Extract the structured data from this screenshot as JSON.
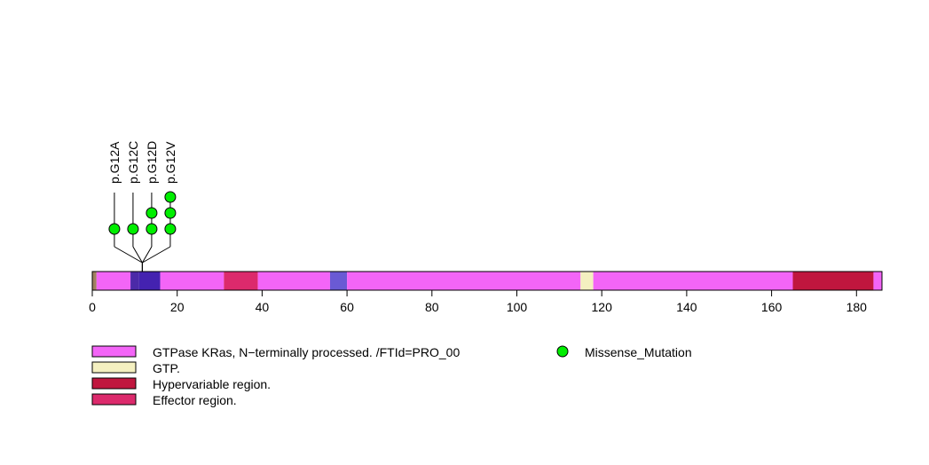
{
  "chart_data": {
    "type": "lollipop",
    "xlim": [
      0,
      186
    ],
    "x_ticks": [
      0,
      20,
      40,
      60,
      80,
      100,
      120,
      140,
      160,
      180
    ],
    "protein_length": 186,
    "domains": [
      {
        "start": 0,
        "end": 1,
        "color": "#a08060"
      },
      {
        "start": 1,
        "end": 9,
        "color": "#f365f7"
      },
      {
        "start": 9,
        "end": 11,
        "color": "#4b2aa8"
      },
      {
        "start": 11,
        "end": 16,
        "color": "#4422b0"
      },
      {
        "start": 16,
        "end": 31,
        "color": "#f365f7"
      },
      {
        "start": 31,
        "end": 39,
        "color": "#dc2a6c"
      },
      {
        "start": 39,
        "end": 56,
        "color": "#f365f7"
      },
      {
        "start": 56,
        "end": 60,
        "color": "#6a5ad4"
      },
      {
        "start": 60,
        "end": 115,
        "color": "#f365f7"
      },
      {
        "start": 115,
        "end": 118,
        "color": "#f4f0c0"
      },
      {
        "start": 118,
        "end": 165,
        "color": "#f365f7"
      },
      {
        "start": 165,
        "end": 184,
        "color": "#c0163e"
      },
      {
        "start": 184,
        "end": 186,
        "color": "#f365f7"
      }
    ],
    "mutations": [
      {
        "label": "p.G12A",
        "position": 12,
        "count": 1
      },
      {
        "label": "p.G12C",
        "position": 12,
        "count": 1
      },
      {
        "label": "p.G12D",
        "position": 12,
        "count": 2
      },
      {
        "label": "p.G12V",
        "position": 12,
        "count": 3
      }
    ],
    "mutation_color": "#00ee00",
    "legend": {
      "domains": [
        {
          "label": "GTPase KRas, N−terminally processed. /FTId=PRO_00",
          "color": "#f365f7"
        },
        {
          "label": "GTP.",
          "color": "#f4f0c0"
        },
        {
          "label": "Hypervariable region.",
          "color": "#c0163e"
        },
        {
          "label": "Effector region.",
          "color": "#dc2a6c"
        }
      ],
      "mutation_types": [
        {
          "label": "Missense_Mutation",
          "color": "#00ee00"
        }
      ]
    }
  }
}
